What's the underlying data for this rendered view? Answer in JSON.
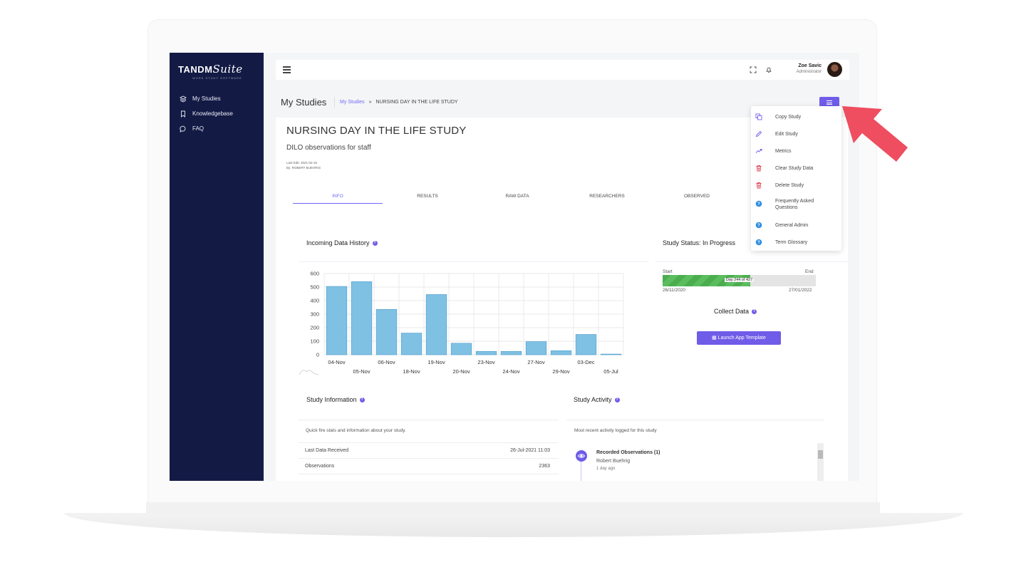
{
  "app": {
    "logo_main": "TANDM",
    "logo_script": "Suite",
    "logo_sub": "WORK STUDY SOFTWARE"
  },
  "sidebar": {
    "items": [
      {
        "label": "My Studies",
        "icon": "layers-icon"
      },
      {
        "label": "Knowledgebase",
        "icon": "bookmark-icon"
      },
      {
        "label": "FAQ",
        "icon": "chat-bubble-icon"
      }
    ]
  },
  "topbar": {
    "user_name": "Zoe Savic",
    "user_role": "Administrator"
  },
  "header": {
    "title": "My Studies",
    "breadcrumb_link": "My Studies",
    "breadcrumb_sep": "»",
    "breadcrumb_current": "NURSING DAY IN THE LIFE STUDY"
  },
  "study": {
    "title": "NURSING DAY IN THE LIFE STUDY",
    "subtitle": "DILO observations for staff",
    "last_edit": "Last Edit: 2021-02-16",
    "by": "By: ROBERT BUEHRIG"
  },
  "tabs": [
    "INFO",
    "RESULTS",
    "RAW DATA",
    "RESEARCHERS",
    "OBSERVED"
  ],
  "incoming": {
    "title": "Incoming Data History"
  },
  "chart_data": {
    "type": "bar",
    "categories": [
      "04-Nov",
      "05-Nov",
      "06-Nov",
      "18-Nov",
      "19-Nov",
      "20-Nov",
      "23-Nov",
      "24-Nov",
      "27-Nov",
      "29-Nov",
      "03-Dec",
      "05-Jul"
    ],
    "values": [
      505,
      540,
      335,
      160,
      445,
      85,
      25,
      25,
      97,
      30,
      150,
      5
    ],
    "ylim": [
      0,
      600
    ],
    "yticks": [
      0,
      100,
      200,
      300,
      400,
      500,
      600
    ],
    "color": "#7fc1e3",
    "grid": true
  },
  "status": {
    "title": "Study Status: In Progress",
    "start_label": "Start",
    "end_label": "End",
    "start_date": "26/11/2020",
    "end_date": "27/01/2022",
    "progress_text": "Day 244 of 427",
    "progress_fraction": 0.571
  },
  "collect": {
    "title": "Collect Data",
    "button": "Launch App Template"
  },
  "info": {
    "title": "Study Information",
    "desc": "Quick fire stats and information about your study.",
    "rows": [
      {
        "k": "Last Data Received",
        "v": "26-Jul-2021 11:03"
      },
      {
        "k": "Observations",
        "v": "2363"
      }
    ]
  },
  "activity": {
    "title": "Study Activity",
    "desc": "Most recent activity logged for this study",
    "item_title": "Recorded Observations (1)",
    "item_who": "Robert Buehrig",
    "item_when": "1 day ago"
  },
  "dropdown": {
    "items": [
      {
        "label": "Copy Study",
        "icon": "copy-icon",
        "color": "#6f5ce8"
      },
      {
        "label": "Edit Study",
        "icon": "pencil-icon",
        "color": "#6f5ce8"
      },
      {
        "label": "Metrics",
        "icon": "trend-icon",
        "color": "#6f5ce8"
      },
      {
        "label": "Clear Study Data",
        "icon": "trash-icon",
        "color": "#e04050"
      },
      {
        "label": "Delete Study",
        "icon": "trash-icon",
        "color": "#e04050"
      },
      {
        "label": "Frequently Asked Questions",
        "icon": "help-icon",
        "color": "#2f8ee0"
      },
      {
        "label": "General Admin",
        "icon": "help-icon",
        "color": "#2f8ee0"
      },
      {
        "label": "Term Glossary",
        "icon": "help-icon",
        "color": "#2f8ee0"
      }
    ]
  },
  "colors": {
    "accent": "#6f5ce8",
    "sidebar": "#131a44",
    "progress": "#4cad4f",
    "arrow": "#ef4d60"
  }
}
